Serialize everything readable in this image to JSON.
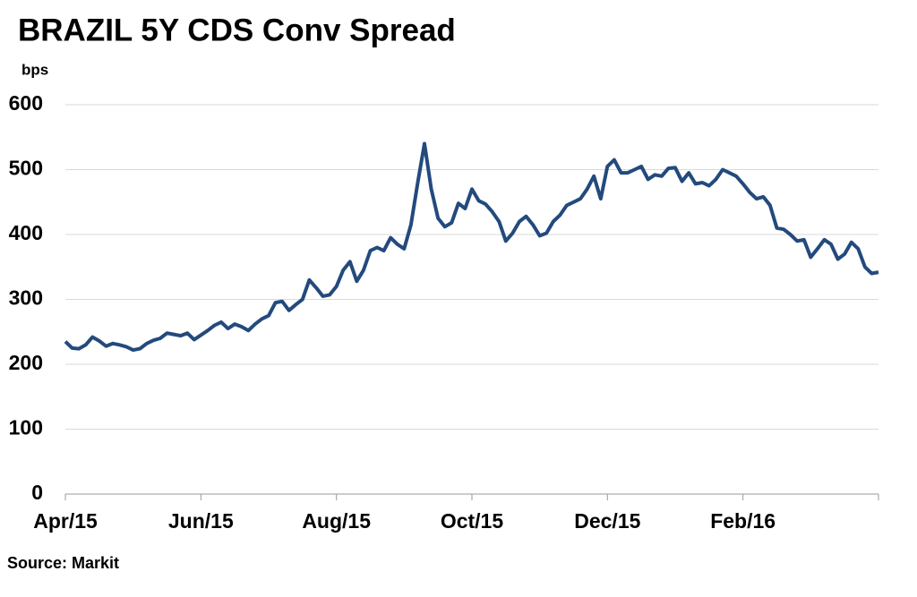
{
  "chart_data": {
    "type": "line",
    "title": "BRAZIL 5Y CDS Conv Spread",
    "y_label": "bps",
    "source": "Source: Markit",
    "categories": [
      "Apr/15",
      null,
      null,
      null,
      null,
      null,
      null,
      null,
      null,
      null,
      null,
      null,
      null,
      null,
      null,
      null,
      null,
      null,
      null,
      null,
      "Jun/15",
      null,
      null,
      null,
      null,
      null,
      null,
      null,
      null,
      null,
      null,
      null,
      null,
      null,
      null,
      null,
      null,
      null,
      null,
      null,
      "Aug/15",
      null,
      null,
      null,
      null,
      null,
      null,
      null,
      null,
      null,
      null,
      null,
      null,
      null,
      null,
      null,
      null,
      null,
      null,
      null,
      "Oct/15",
      null,
      null,
      null,
      null,
      null,
      null,
      null,
      null,
      null,
      null,
      null,
      null,
      null,
      null,
      null,
      null,
      null,
      null,
      null,
      "Dec/15",
      null,
      null,
      null,
      null,
      null,
      null,
      null,
      null,
      null,
      null,
      null,
      null,
      null,
      null,
      null,
      null,
      null,
      null,
      null,
      "Feb/16",
      null,
      null,
      null,
      null,
      null,
      null,
      null,
      null,
      null,
      null,
      null,
      null,
      null,
      null,
      null,
      null,
      null,
      null,
      null,
      null
    ],
    "series": [
      {
        "name": "BRAZIL 5Y CDS Conv Spread",
        "color": "#234a7d",
        "values": [
          235,
          225,
          224,
          230,
          242,
          236,
          228,
          232,
          230,
          227,
          222,
          224,
          232,
          237,
          240,
          248,
          246,
          244,
          248,
          238,
          245,
          252,
          260,
          265,
          255,
          262,
          258,
          252,
          262,
          270,
          275,
          295,
          297,
          283,
          292,
          300,
          330,
          318,
          305,
          307,
          320,
          345,
          358,
          328,
          345,
          375,
          380,
          375,
          395,
          385,
          378,
          415,
          480,
          540,
          470,
          425,
          412,
          418,
          448,
          440,
          470,
          452,
          447,
          435,
          420,
          390,
          402,
          420,
          428,
          415,
          398,
          402,
          420,
          430,
          445,
          450,
          455,
          470,
          490,
          455,
          505,
          515,
          495,
          495,
          500,
          505,
          485,
          492,
          490,
          502,
          503,
          482,
          495,
          478,
          480,
          475,
          485,
          500,
          495,
          490,
          478,
          465,
          455,
          458,
          445,
          410,
          408,
          400,
          390,
          392,
          365,
          378,
          392,
          385,
          362,
          370,
          388,
          378,
          350,
          340,
          342
        ]
      }
    ],
    "ylim": [
      0,
      600
    ],
    "yticks": [
      0,
      100,
      200,
      300,
      400,
      500,
      600
    ],
    "grid": true
  }
}
